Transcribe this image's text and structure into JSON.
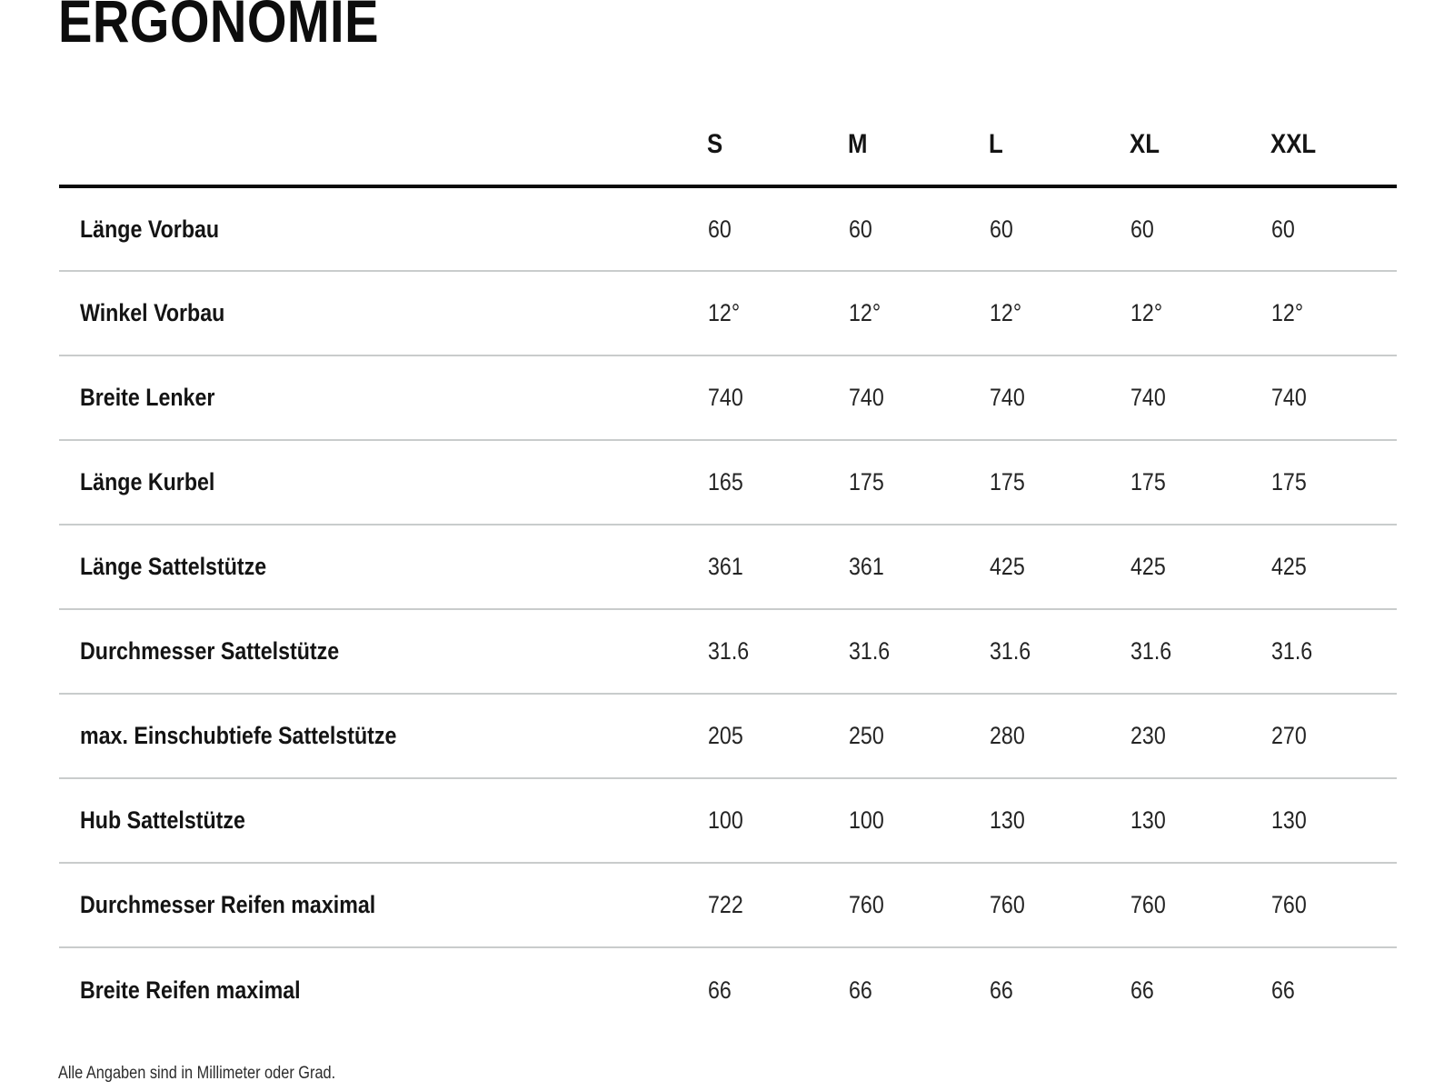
{
  "page": {
    "title": "ERGONOMIE",
    "footnote": "Alle Angaben sind in Millimeter oder Grad."
  },
  "table": {
    "size_headers": [
      "S",
      "M",
      "L",
      "XL",
      "XXL"
    ],
    "rows": [
      {
        "label": "Länge Vorbau",
        "values": [
          "60",
          "60",
          "60",
          "60",
          "60"
        ]
      },
      {
        "label": "Winkel Vorbau",
        "values": [
          "12°",
          "12°",
          "12°",
          "12°",
          "12°"
        ]
      },
      {
        "label": "Breite Lenker",
        "values": [
          "740",
          "740",
          "740",
          "740",
          "740"
        ]
      },
      {
        "label": "Länge Kurbel",
        "values": [
          "165",
          "175",
          "175",
          "175",
          "175"
        ]
      },
      {
        "label": "Länge Sattelstütze",
        "values": [
          "361",
          "361",
          "425",
          "425",
          "425"
        ]
      },
      {
        "label": "Durchmesser Sattelstütze",
        "values": [
          "31.6",
          "31.6",
          "31.6",
          "31.6",
          "31.6"
        ]
      },
      {
        "label": "max. Einschubtiefe Sattelstütze",
        "values": [
          "205",
          "250",
          "280",
          "230",
          "270"
        ]
      },
      {
        "label": "Hub Sattelstütze",
        "values": [
          "100",
          "100",
          "130",
          "130",
          "130"
        ]
      },
      {
        "label": "Durchmesser Reifen maximal",
        "values": [
          "722",
          "760",
          "760",
          "760",
          "760"
        ]
      },
      {
        "label": "Breite Reifen maximal",
        "values": [
          "66",
          "66",
          "66",
          "66",
          "66"
        ]
      }
    ]
  },
  "colors": {
    "text": "#161616",
    "header_rule": "#0a0a0a",
    "row_divider": "#c9cccc",
    "background": "#ffffff"
  }
}
